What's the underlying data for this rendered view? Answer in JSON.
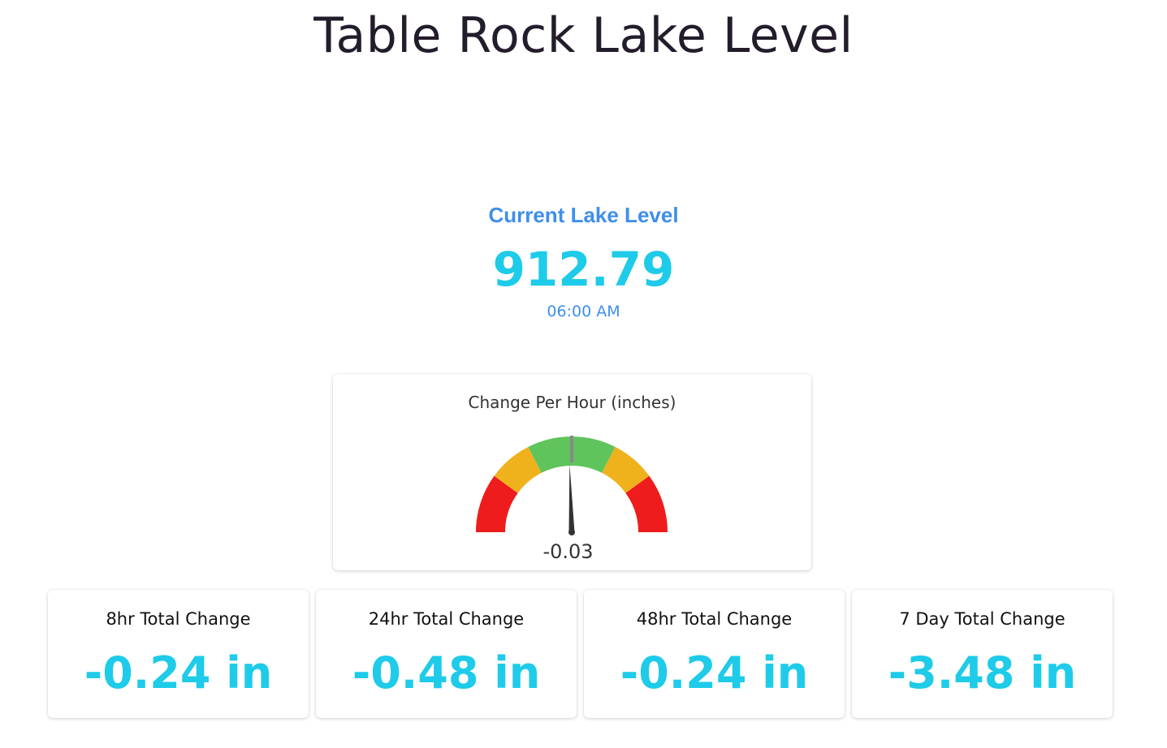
{
  "header": {
    "title": "Table Rock Lake Level"
  },
  "current": {
    "label": "Current Lake Level",
    "value": "912.79",
    "time": "06:00 AM"
  },
  "gauge": {
    "title": "Change Per Hour (inches)",
    "value_text": "-0.03",
    "needle_fraction": 0.49,
    "needle_color": "#333333",
    "marker_color": "#888888",
    "bands": [
      {
        "color": "#ee1c1c",
        "from": 0.0,
        "to": 0.2
      },
      {
        "color": "#efb21d",
        "from": 0.2,
        "to": 0.35
      },
      {
        "color": "#60c45d",
        "from": 0.35,
        "to": 0.65
      },
      {
        "color": "#efb21d",
        "from": 0.65,
        "to": 0.8
      },
      {
        "color": "#ee1c1c",
        "from": 0.8,
        "to": 1.0
      }
    ]
  },
  "stats": [
    {
      "label": "8hr Total Change",
      "value": "-0.24 in"
    },
    {
      "label": "24hr Total Change",
      "value": "-0.48 in"
    },
    {
      "label": "48hr Total Change",
      "value": "-0.24 in"
    },
    {
      "label": "7 Day Total Change",
      "value": "-3.48 in"
    }
  ],
  "colors": {
    "title": "#231c2b",
    "accent_blue": "#3f8fea",
    "value_cyan": "#1ecbe9"
  }
}
